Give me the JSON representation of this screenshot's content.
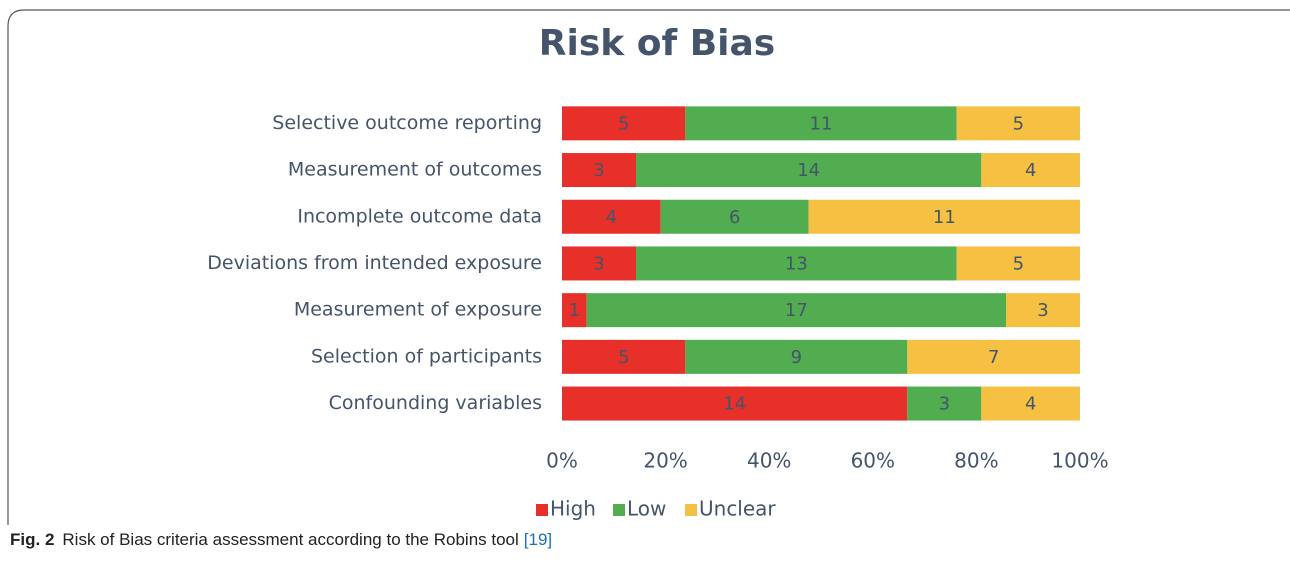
{
  "chart_data": {
    "type": "stacked-bar-percent",
    "orientation": "horizontal",
    "title": "Risk of Bias",
    "categories": [
      "Selective outcome reporting",
      "Measurement of outcomes",
      "Incomplete outcome data",
      "Deviations from intended exposure",
      "Measurement of exposure",
      "Selection of participants",
      "Confounding variables"
    ],
    "series": [
      {
        "name": "High",
        "color": "#e8302a",
        "values": [
          5,
          3,
          4,
          3,
          1,
          5,
          14
        ]
      },
      {
        "name": "Low",
        "color": "#52ad50",
        "values": [
          11,
          14,
          6,
          13,
          17,
          9,
          3
        ]
      },
      {
        "name": "Unclear",
        "color": "#f6c143",
        "values": [
          5,
          4,
          11,
          5,
          3,
          7,
          4
        ]
      }
    ],
    "xlim": [
      0,
      100
    ],
    "xticks": [
      {
        "value": 0,
        "label": "0%"
      },
      {
        "value": 20,
        "label": "20%"
      },
      {
        "value": 40,
        "label": "40%"
      },
      {
        "value": 60,
        "label": "60%"
      },
      {
        "value": 80,
        "label": "80%"
      },
      {
        "value": 100,
        "label": "100%"
      }
    ],
    "grid": false,
    "legend": "bottom"
  },
  "caption": {
    "label": "Fig. 2",
    "text": "Risk of Bias criteria assessment according to the Robins tool",
    "ref": "[19]"
  }
}
